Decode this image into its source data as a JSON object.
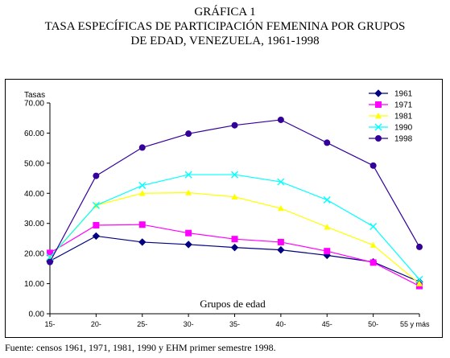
{
  "header": {
    "line1": "GRÁFICA 1",
    "line2": "TASA ESPECÍFICAS DE PARTICIPACIÓN FEMENINA POR GRUPOS",
    "line3": "DE EDAD, VENEZUELA, 1961-1998"
  },
  "source": "Fuente: censos 1961, 1971, 1981, 1990 y EHM primer semestre 1998.",
  "chart_data": {
    "type": "line",
    "title": "",
    "xlabel": "Grupos de edad",
    "ylabel": "Tasas",
    "categories": [
      "15-",
      "20-",
      "25-",
      "30-",
      "35-",
      "40-",
      "45-",
      "50-",
      "55 y más"
    ],
    "ylim": [
      0,
      70
    ],
    "yticks": [
      "0.00",
      "10.00",
      "20.00",
      "30.00",
      "40.00",
      "50.00",
      "60.00",
      "70.00"
    ],
    "grid": false,
    "legend_position": "top-right",
    "series": [
      {
        "name": "1961",
        "color": "#000080",
        "marker": "diamond",
        "values": [
          17.5,
          25.8,
          23.8,
          23.0,
          22.0,
          21.2,
          19.4,
          17.2,
          10.6
        ]
      },
      {
        "name": "1971",
        "color": "#ff00ff",
        "marker": "square",
        "values": [
          20.2,
          29.4,
          29.6,
          26.8,
          24.8,
          23.8,
          20.8,
          17.0,
          9.2
        ]
      },
      {
        "name": "1981",
        "color": "#ffff00",
        "marker": "triangle",
        "values": [
          18.6,
          36.0,
          40.0,
          40.2,
          38.8,
          35.0,
          28.8,
          22.8,
          10.0
        ]
      },
      {
        "name": "1990",
        "color": "#00ffff",
        "marker": "x",
        "values": [
          18.8,
          36.0,
          42.6,
          46.2,
          46.2,
          43.8,
          37.8,
          29.0,
          11.4
        ]
      },
      {
        "name": "1998",
        "color": "#330099",
        "marker": "circle",
        "values": [
          17.2,
          45.8,
          55.2,
          59.8,
          62.6,
          64.4,
          56.8,
          49.2,
          22.2
        ]
      }
    ]
  }
}
